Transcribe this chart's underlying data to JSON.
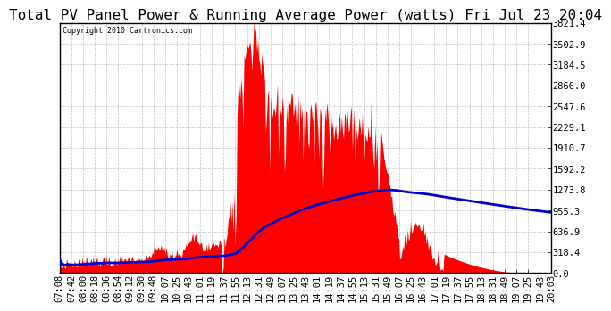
{
  "title": "Total PV Panel Power & Running Average Power (watts) Fri Jul 23 20:04",
  "copyright": "Copyright 2010 Cartronics.com",
  "y_ticks": [
    0.0,
    318.4,
    636.9,
    955.3,
    1273.8,
    1592.2,
    1910.7,
    2229.1,
    2547.6,
    2866.0,
    3184.5,
    3502.9,
    3821.4
  ],
  "y_max": 3821.4,
  "y_min": 0.0,
  "background_color": "#ffffff",
  "plot_bg_color": "#ffffff",
  "grid_color": "#aaaaaa",
  "bar_color": "#ff0000",
  "line_color": "#0000cc",
  "title_fontsize": 11.5,
  "tick_fontsize": 7.5,
  "x_labels": [
    "07:08",
    "07:42",
    "08:00",
    "08:18",
    "08:36",
    "08:54",
    "09:12",
    "09:30",
    "09:48",
    "10:07",
    "10:25",
    "10:43",
    "11:01",
    "11:19",
    "11:37",
    "11:55",
    "12:13",
    "12:31",
    "12:49",
    "13:07",
    "13:25",
    "13:43",
    "14:01",
    "14:19",
    "14:37",
    "14:55",
    "15:13",
    "15:31",
    "15:49",
    "16:07",
    "16:25",
    "16:43",
    "17:01",
    "17:19",
    "17:37",
    "17:55",
    "18:13",
    "18:31",
    "18:49",
    "19:07",
    "19:25",
    "19:43",
    "20:03"
  ]
}
